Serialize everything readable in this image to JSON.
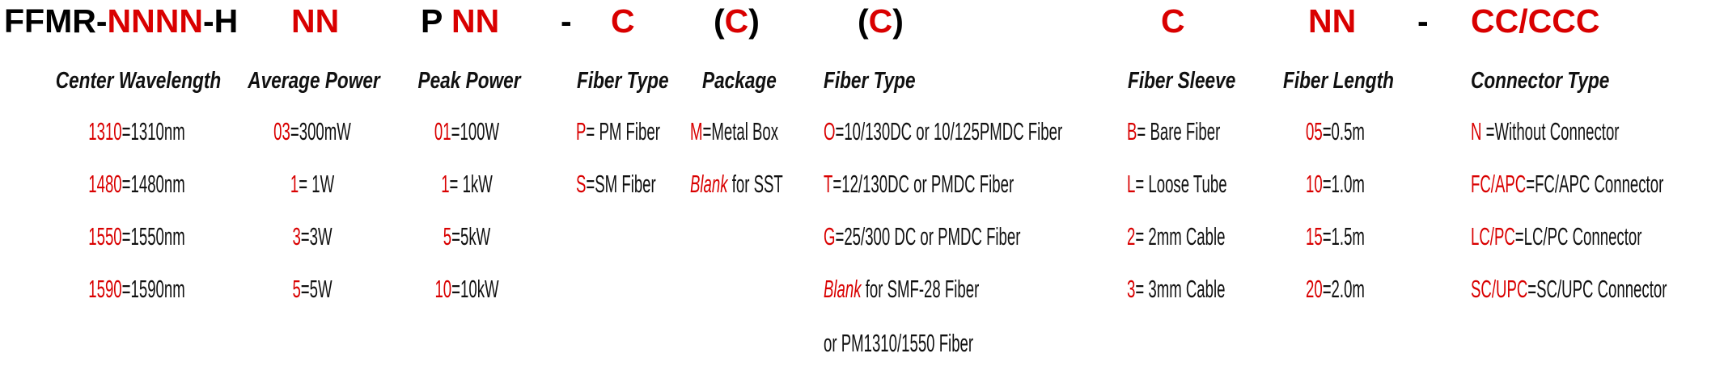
{
  "part_number": [
    {
      "text": "FFMR-",
      "red": false
    },
    {
      "text": "NNNN",
      "red": true
    },
    {
      "text": "-H",
      "red": false
    },
    {
      "text": "NN",
      "red": true
    },
    {
      "text": "P ",
      "red": false
    },
    {
      "text": "NN",
      "red": true
    },
    {
      "text": "-",
      "red": false
    },
    {
      "text": "C",
      "red": true
    },
    {
      "text": "(",
      "red": false
    },
    {
      "text": "C",
      "red": true
    },
    {
      "text": ")",
      "red": false
    },
    {
      "text": "(",
      "red": false
    },
    {
      "text": "C",
      "red": true
    },
    {
      "text": ")",
      "red": false
    },
    {
      "text": "C",
      "red": true
    },
    {
      "text": "NN",
      "red": true
    },
    {
      "text": "-",
      "red": false
    },
    {
      "text": "CC/CCC",
      "red": true
    }
  ],
  "colors": {
    "code": "#d90000",
    "text": "#111111"
  },
  "columns": [
    {
      "header": "Center Wavelength",
      "items": [
        {
          "code": "1310",
          "desc": "=1310nm"
        },
        {
          "code": "1480",
          "desc": "=1480nm"
        },
        {
          "code": "1550",
          "desc": "=1550nm"
        },
        {
          "code": "1590",
          "desc": "=1590nm"
        }
      ]
    },
    {
      "header": "Average Power",
      "items": [
        {
          "code": "03",
          "desc": "=300mW"
        },
        {
          "code": "1",
          "desc": "= 1W"
        },
        {
          "code": "3",
          "desc": "=3W"
        },
        {
          "code": "5",
          "desc": "=5W"
        }
      ]
    },
    {
      "header": "Peak Power",
      "items": [
        {
          "code": "01",
          "desc": "=100W"
        },
        {
          "code": "1",
          "desc": "= 1kW"
        },
        {
          "code": "5",
          "desc": "=5kW"
        },
        {
          "code": "10",
          "desc": "=10kW"
        }
      ]
    },
    {
      "header": "Fiber Type",
      "items": [
        {
          "code": "P",
          "desc": "= PM Fiber"
        },
        {
          "code": "S",
          "desc": "=SM Fiber"
        }
      ]
    },
    {
      "header": "Package",
      "items": [
        {
          "code": "M",
          "desc": "=Metal Box"
        },
        {
          "code": "Blank",
          "desc": " for SST",
          "italic": true
        }
      ]
    },
    {
      "header": "Fiber Type",
      "items": [
        {
          "code": "O",
          "desc": "=10/130DC or 10/125PMDC Fiber"
        },
        {
          "code": "T",
          "desc": "=12/130DC or PMDC Fiber"
        },
        {
          "code": "G",
          "desc": "=25/300 DC or PMDC Fiber"
        },
        {
          "code": "Blank",
          "desc": " for SMF-28 Fiber",
          "italic": true
        },
        {
          "code": "",
          "desc": "or PM1310/1550 Fiber"
        }
      ]
    },
    {
      "header": "Fiber Sleeve",
      "items": [
        {
          "code": "B",
          "desc": "= Bare Fiber"
        },
        {
          "code": "L",
          "desc": "= Loose Tube"
        },
        {
          "code": "2",
          "desc": "= 2mm Cable"
        },
        {
          "code": "3",
          "desc": "= 3mm Cable"
        }
      ]
    },
    {
      "header": "Fiber Length",
      "items": [
        {
          "code": "05",
          "desc": "=0.5m"
        },
        {
          "code": "10",
          "desc": "=1.0m"
        },
        {
          "code": "15",
          "desc": "=1.5m"
        },
        {
          "code": "20",
          "desc": "=2.0m"
        }
      ]
    },
    {
      "header": "Connector Type",
      "items": [
        {
          "code": "N",
          "desc": " =Without Connector"
        },
        {
          "code": "FC/APC",
          "desc": "=FC/APC Connector"
        },
        {
          "code": "LC/PC",
          "desc": "=LC/PC Connector"
        },
        {
          "code": "SC/UPC",
          "desc": "=SC/UPC Connector"
        }
      ]
    }
  ]
}
